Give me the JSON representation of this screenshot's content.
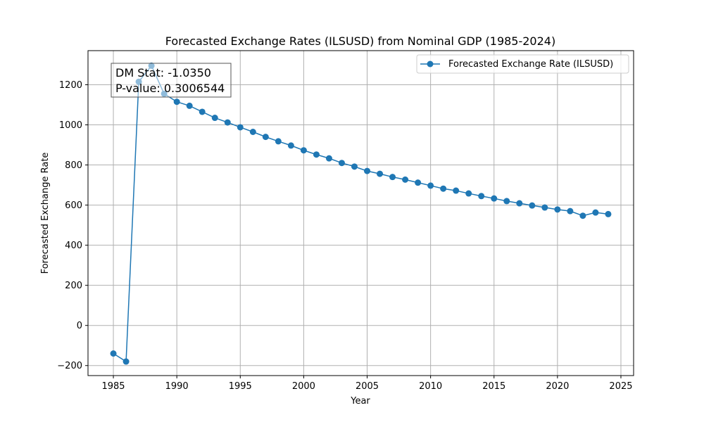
{
  "chart_data": {
    "type": "line",
    "title": "Forecasted Exchange Rates (ILSUSD) from Nominal GDP (1985-2024)",
    "xlabel": "Year",
    "ylabel": "Forecasted Exchange Rate",
    "xlim": [
      1983,
      2026
    ],
    "ylim": [
      -250,
      1370
    ],
    "xticks": [
      1985,
      1990,
      1995,
      2000,
      2005,
      2010,
      2015,
      2020,
      2025
    ],
    "yticks": [
      -200,
      0,
      200,
      400,
      600,
      800,
      1000,
      1200
    ],
    "grid": true,
    "legend_position": "top-right",
    "series": [
      {
        "name": "Forecasted Exchange Rate (ILSUSD)",
        "color": "#1f77b4",
        "marker": "circle",
        "x": [
          1985,
          1986,
          1987,
          1988,
          1989,
          1990,
          1991,
          1992,
          1993,
          1994,
          1995,
          1996,
          1997,
          1998,
          1999,
          2000,
          2001,
          2002,
          2003,
          2004,
          2005,
          2006,
          2007,
          2008,
          2009,
          2010,
          2011,
          2012,
          2013,
          2014,
          2015,
          2016,
          2017,
          2018,
          2019,
          2020,
          2021,
          2022,
          2023,
          2024
        ],
        "y": [
          -140,
          -180,
          1215,
          1295,
          1155,
          1115,
          1095,
          1065,
          1035,
          1012,
          988,
          965,
          940,
          918,
          897,
          873,
          852,
          833,
          810,
          792,
          770,
          756,
          740,
          727,
          712,
          697,
          682,
          672,
          658,
          645,
          633,
          620,
          609,
          598,
          588,
          578,
          570,
          547,
          563,
          555
        ]
      }
    ],
    "annotation": {
      "line1": "DM Stat: -1.0350",
      "line2": "P-value: 0.3006544"
    }
  }
}
